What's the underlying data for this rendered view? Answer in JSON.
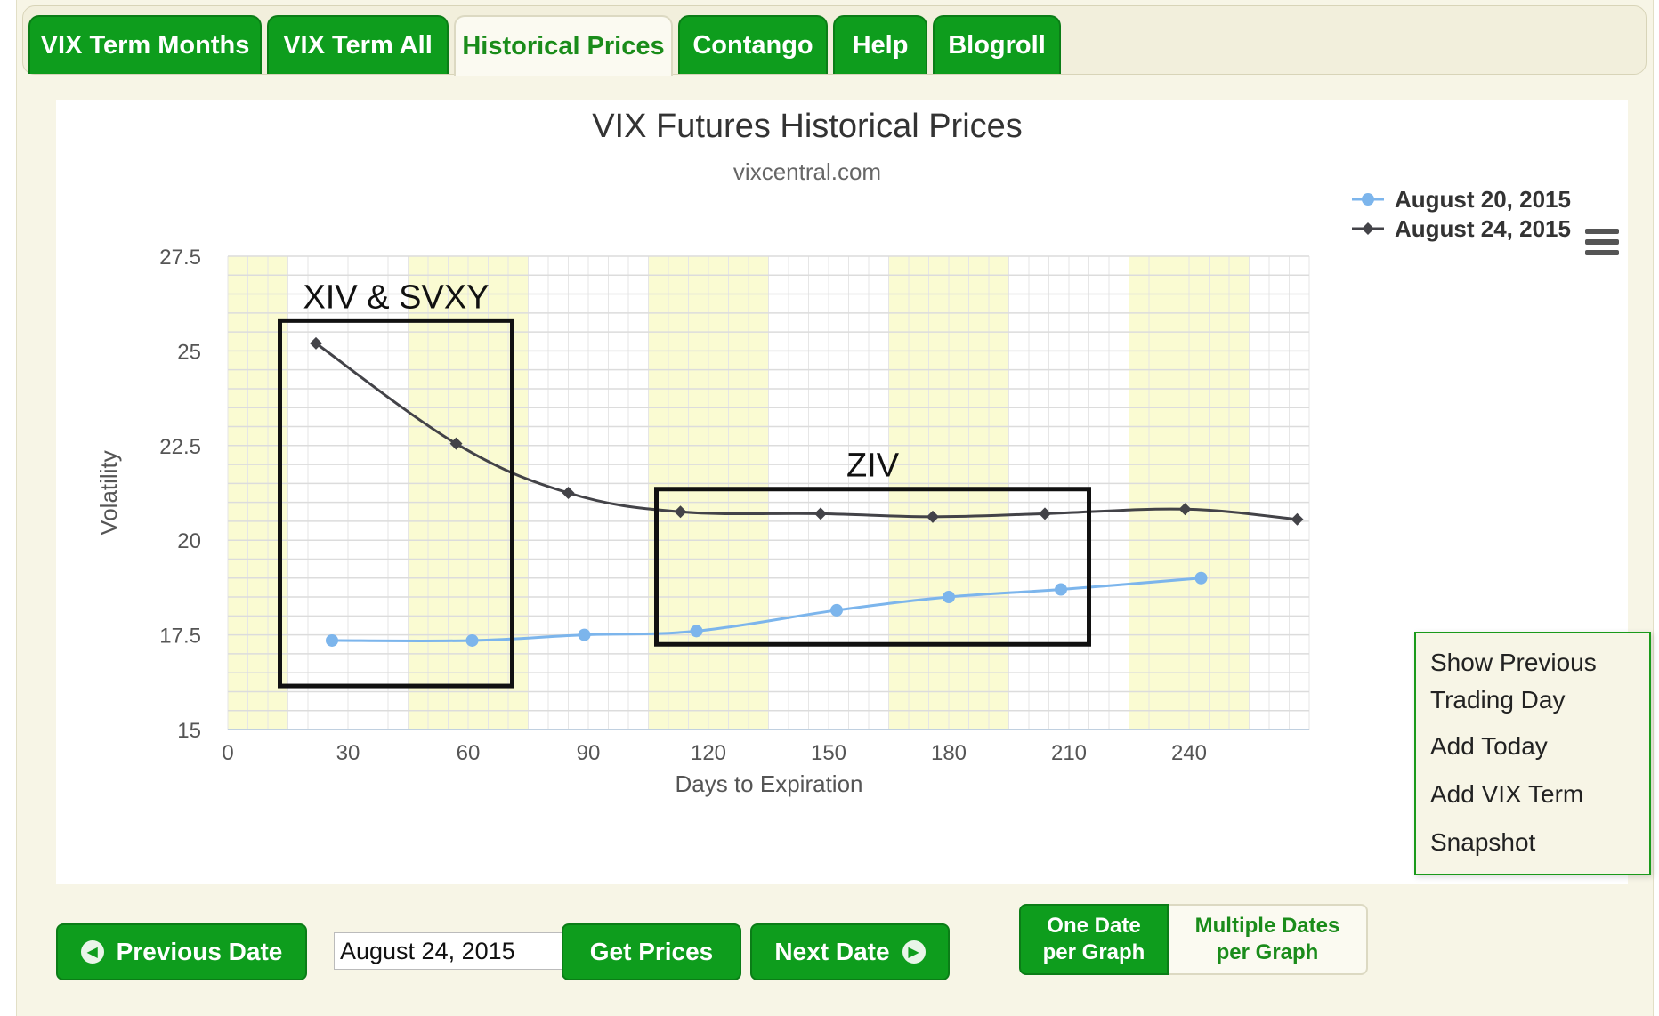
{
  "tabs": [
    {
      "label": "VIX Term Months",
      "active": false
    },
    {
      "label": "VIX Term All",
      "active": false
    },
    {
      "label": "Historical Prices",
      "active": true
    },
    {
      "label": "Contango",
      "active": false
    },
    {
      "label": "Help",
      "active": false
    },
    {
      "label": "Blogroll",
      "active": false
    }
  ],
  "chart_data": {
    "type": "line",
    "title": "VIX Futures Historical Prices",
    "subtitle": "vixcentral.com",
    "xlabel": "Days to Expiration",
    "ylabel": "Volatility",
    "xlim": [
      0,
      270
    ],
    "ylim": [
      15,
      27.5
    ],
    "xticks": [
      0,
      30,
      60,
      90,
      120,
      150,
      180,
      210,
      240
    ],
    "yticks": [
      15,
      17.5,
      20,
      22.5,
      25,
      27.5
    ],
    "ytick_labels": [
      "15",
      "17.5",
      "20",
      "22.5",
      "25",
      "27.5"
    ],
    "grid": true,
    "legend_position": "top-right",
    "series": [
      {
        "name": "August 20, 2015",
        "color": "#7cb5ec",
        "marker": "circle",
        "x": [
          26,
          61,
          89,
          117,
          152,
          180,
          208,
          243
        ],
        "y": [
          17.35,
          17.35,
          17.5,
          17.6,
          18.15,
          18.5,
          18.7,
          19.0
        ]
      },
      {
        "name": "August 24, 2015",
        "color": "#434348",
        "marker": "diamond",
        "x": [
          22,
          57,
          85,
          113,
          148,
          176,
          204,
          239,
          267
        ],
        "y": [
          25.2,
          22.55,
          21.25,
          20.75,
          20.7,
          20.62,
          20.7,
          20.82,
          20.55
        ]
      }
    ],
    "annotations": [
      {
        "text": "XIV & SVXY",
        "box_x": [
          13,
          71
        ],
        "box_y": [
          16.15,
          25.8
        ]
      },
      {
        "text": "ZIV",
        "box_x": [
          107,
          215
        ],
        "box_y": [
          17.25,
          21.35
        ]
      }
    ],
    "credit": "vixcentral.com"
  },
  "context_menu": {
    "items": [
      "Show Previous",
      "Trading Day",
      "Add Today",
      "Add VIX Term",
      "Snapshot"
    ]
  },
  "controls": {
    "previous_label": "Previous Date",
    "date_value": "August 24, 2015",
    "get_prices_label": "Get Prices",
    "next_label": "Next Date",
    "one_date_line1": "One Date",
    "one_date_line2": "per Graph",
    "multi_line1": "Multiple Dates",
    "multi_line2": "per Graph"
  },
  "colors": {
    "brand_green": "#0e9d1d",
    "band_yellow": "#fafbd2",
    "series1": "#7cb5ec",
    "series2": "#434348"
  }
}
